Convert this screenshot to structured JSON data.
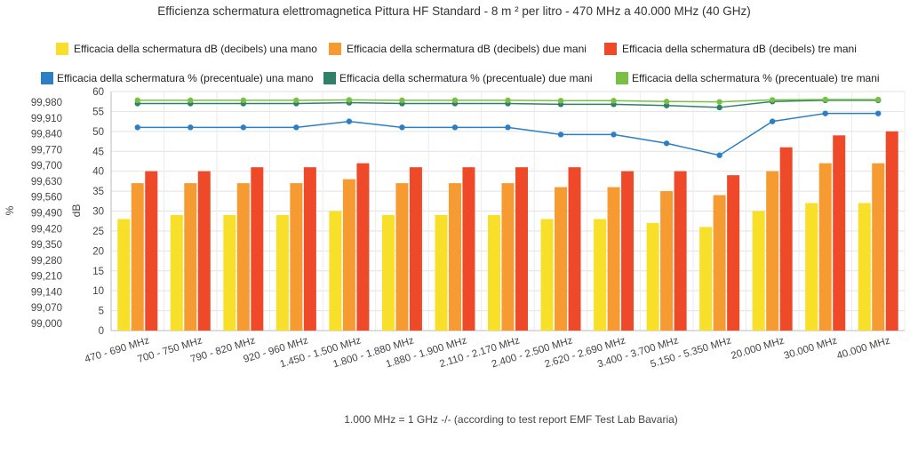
{
  "chart_data": {
    "type": "bar",
    "title": "Efficienza schermatura elettromagnetica Pittura HF Standard - 8 m ² per litro - 470 MHz a 40.000 MHz (40 GHz)",
    "footnote": "1.000 MHz = 1 GHz -/- (according to test report EMF Test Lab Bavaria)",
    "categories": [
      "470 - 690 MHz",
      "700 - 750 MHz",
      "790 - 820 MHz",
      "920 - 960 MHz",
      "1.450 - 1.500 MHz",
      "1.800 - 1.880 MHz",
      "1.880 - 1.900 MHz",
      "2.110 - 2.170 MHz",
      "2.400 - 2.500 MHz",
      "2.620 - 2.690 MHz",
      "3.400 - 3.700 MHz",
      "5.150 - 5.350 MHz",
      "20.000 MHz",
      "30.000 MHz",
      "40.000 MHz"
    ],
    "ylabel_left": "%",
    "ylabel_right": "dB",
    "left_axis_ticks": [
      "99,000",
      "99,070",
      "99,140",
      "99,210",
      "99,280",
      "99,350",
      "99,420",
      "99,490",
      "99,560",
      "99,630",
      "99,700",
      "99,770",
      "99,840",
      "99,910",
      "99,980"
    ],
    "db_axis": {
      "min": 0,
      "max": 60,
      "step": 5
    },
    "grid": true,
    "legend_position": "top",
    "bar_series": [
      {
        "name": "Efficacia della schermatura dB (decibels) una mano",
        "color": "#f7df2a",
        "values": [
          28,
          29,
          29,
          29,
          30,
          29,
          29,
          29,
          28,
          28,
          27,
          26,
          30,
          32,
          32
        ]
      },
      {
        "name": "Efficacia della schermatura dB (decibels) due mani",
        "color": "#f59b32",
        "values": [
          37,
          37,
          37,
          37,
          38,
          37,
          37,
          37,
          36,
          36,
          35,
          34,
          40,
          42,
          42
        ]
      },
      {
        "name": "Efficacia della schermatura dB (decibels) tre mani",
        "color": "#ee4a2a",
        "values": [
          40,
          40,
          41,
          41,
          42,
          41,
          41,
          41,
          41,
          40,
          40,
          39,
          46,
          49,
          50
        ]
      }
    ],
    "line_series": [
      {
        "name": "Efficacia della schermatura % (precentuale) una mano",
        "color": "#2b7fc2",
        "values_db_scale": [
          51,
          51,
          51,
          51,
          52.5,
          51,
          51,
          51,
          49.2,
          49.2,
          47,
          44,
          52.5,
          54.5,
          54.5
        ]
      },
      {
        "name": "Efficacia della schermatura % (precentuale) due mani",
        "color": "#2e8069",
        "values_db_scale": [
          57,
          57,
          57,
          57,
          57.2,
          57,
          57,
          57,
          56.8,
          56.8,
          56.5,
          56,
          57.5,
          57.8,
          57.8
        ]
      },
      {
        "name": "Efficacia della schermatura % (precentuale) tre mani",
        "color": "#77c043",
        "values_db_scale": [
          57.8,
          57.8,
          57.8,
          57.8,
          57.9,
          57.8,
          57.8,
          57.8,
          57.7,
          57.7,
          57.5,
          57.4,
          57.9,
          58,
          58
        ]
      }
    ]
  }
}
